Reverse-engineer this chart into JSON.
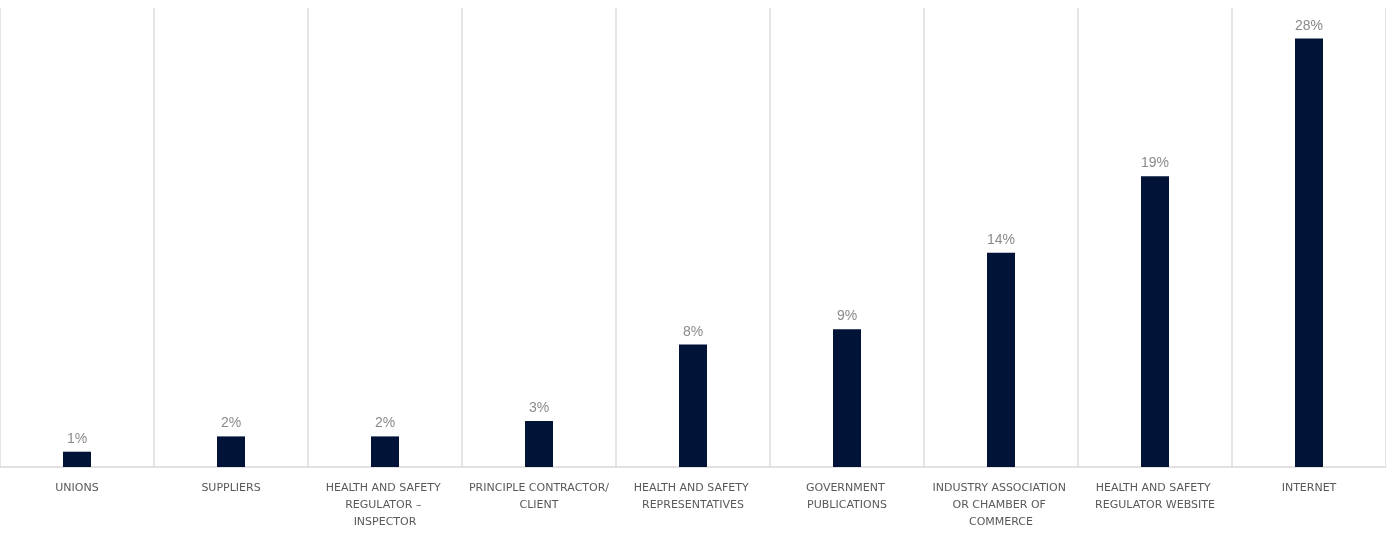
{
  "chart_data": {
    "type": "bar",
    "categories": [
      "UNIONS",
      "SUPPLIERS",
      "HEALTH AND SAFETY REGULATOR – INSPECTOR",
      "PRINCIPLE CONTRACTOR/CLIENT",
      "HEALTH AND SAFETY REPRESENTATIVES",
      "GOVERNMENT PUBLICATIONS",
      "INDUSTRY ASSOCIATION OR CHAMBER OF COMMERCE",
      "HEALTH AND SAFETY REGULATOR WEBSITE",
      "INTERNET"
    ],
    "values": [
      1,
      2,
      2,
      3,
      8,
      9,
      14,
      19,
      28
    ],
    "value_labels": [
      "1%",
      "2%",
      "2%",
      "3%",
      "8%",
      "9%",
      "14%",
      "19%",
      "28%"
    ],
    "color": "#021338",
    "grid": "x",
    "tick_labels": "x"
  }
}
